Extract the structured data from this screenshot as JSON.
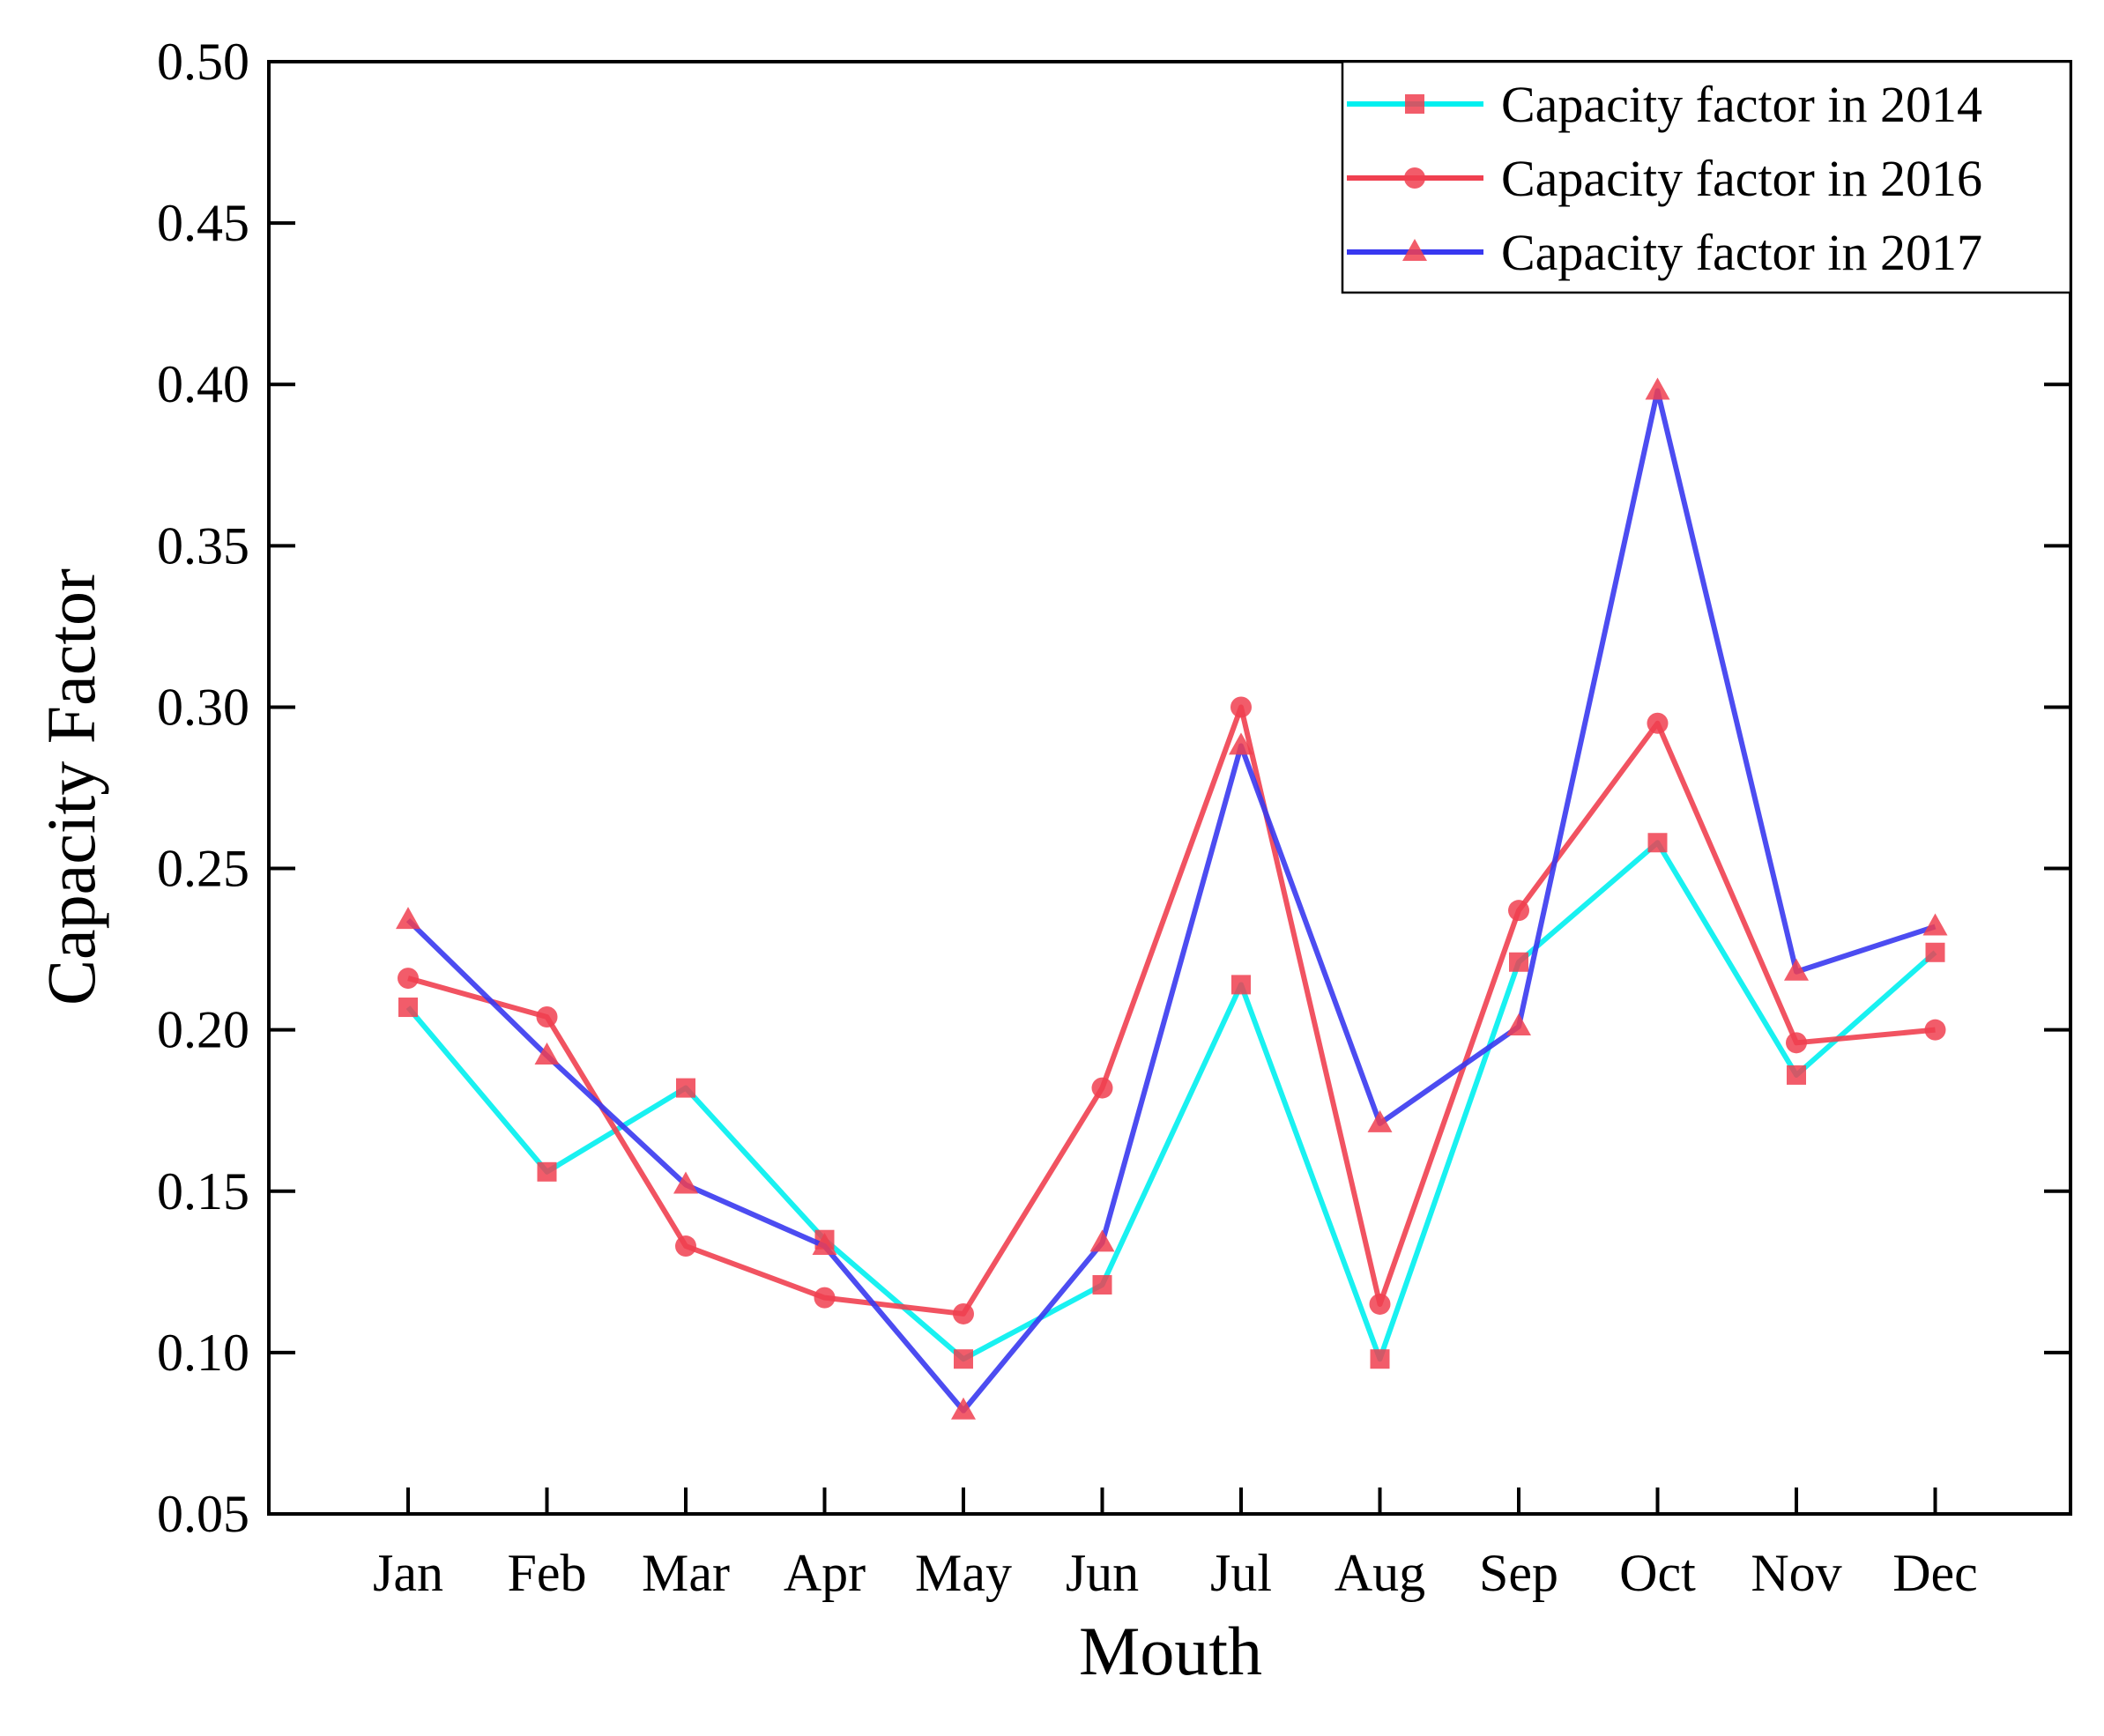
{
  "chart_data": {
    "type": "line",
    "xlabel": "Mouth",
    "ylabel": "Capacity Factor",
    "categories": [
      "Jan",
      "Feb",
      "Mar",
      "Apr",
      "May",
      "Jun",
      "Jul",
      "Aug",
      "Sep",
      "Oct",
      "Nov",
      "Dec"
    ],
    "ylim": [
      0.05,
      0.5
    ],
    "yticks": [
      "0.05",
      "0.10",
      "0.15",
      "0.20",
      "0.25",
      "0.30",
      "0.35",
      "0.40",
      "0.45",
      "0.50"
    ],
    "grid": false,
    "legend_position": "top-right",
    "series": [
      {
        "name": "Capacity factor in 2014",
        "line_color": "#00f0f0",
        "marker_color": "#f04050",
        "marker": "square",
        "values": [
          0.207,
          0.156,
          0.182,
          0.135,
          0.098,
          0.121,
          0.214,
          0.098,
          0.221,
          0.258,
          0.186,
          0.224
        ]
      },
      {
        "name": "Capacity factor in 2016",
        "line_color": "#f04050",
        "marker_color": "#f04050",
        "marker": "circle",
        "values": [
          0.216,
          0.204,
          0.133,
          0.117,
          0.112,
          0.182,
          0.3,
          0.115,
          0.237,
          0.295,
          0.196,
          0.2
        ]
      },
      {
        "name": "Capacity factor in 2017",
        "line_color": "#3838f0",
        "marker_color": "#f04050",
        "marker": "triangle",
        "values": [
          0.234,
          0.192,
          0.152,
          0.133,
          0.082,
          0.134,
          0.288,
          0.171,
          0.201,
          0.398,
          0.218,
          0.232
        ]
      }
    ]
  }
}
